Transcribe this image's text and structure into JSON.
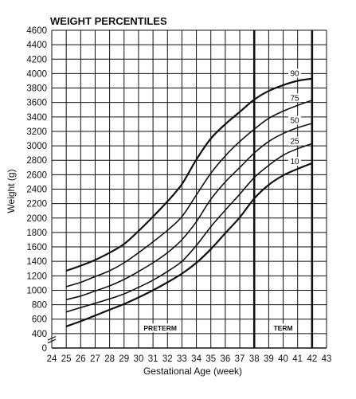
{
  "chart_data": {
    "type": "line",
    "title": "WEIGHT PERCENTILES",
    "xlabel": "Gestational Age (week)",
    "ylabel": "Weight (g)",
    "xlim": [
      24,
      43
    ],
    "ylim": [
      0,
      4600
    ],
    "x_ticks": [
      "24",
      "25",
      "26",
      "27",
      "28",
      "29",
      "30",
      "31",
      "32",
      "33",
      "34",
      "35",
      "36",
      "37",
      "38",
      "39",
      "40",
      "41",
      "42",
      "43"
    ],
    "y_ticks": [
      "0",
      "400",
      "600",
      "800",
      "1000",
      "1200",
      "1400",
      "1600",
      "1800",
      "2000",
      "2200",
      "2400",
      "2600",
      "2800",
      "3000",
      "3200",
      "3400",
      "3600",
      "3800",
      "4000",
      "4200",
      "4400",
      "4600"
    ],
    "grid": true,
    "regions": [
      {
        "label": "PRETERM",
        "x_start": 25,
        "x_end": 38
      },
      {
        "label": "TERM",
        "x_start": 38,
        "x_end": 42
      }
    ],
    "x": [
      25,
      26,
      27,
      28,
      29,
      30,
      31,
      32,
      33,
      34,
      35,
      36,
      37,
      38,
      39,
      40,
      41,
      42
    ],
    "series": [
      {
        "name": "90",
        "values": [
          1270,
          1340,
          1420,
          1520,
          1640,
          1820,
          2020,
          2230,
          2470,
          2810,
          3100,
          3300,
          3470,
          3640,
          3760,
          3840,
          3900,
          3930
        ]
      },
      {
        "name": "75",
        "values": [
          1050,
          1110,
          1190,
          1270,
          1380,
          1520,
          1670,
          1830,
          2020,
          2320,
          2620,
          2860,
          3060,
          3230,
          3380,
          3480,
          3560,
          3630
        ]
      },
      {
        "name": "50",
        "values": [
          870,
          920,
          990,
          1060,
          1150,
          1260,
          1380,
          1520,
          1700,
          1950,
          2260,
          2500,
          2700,
          2900,
          3060,
          3170,
          3250,
          3310
        ]
      },
      {
        "name": "25",
        "values": [
          700,
          760,
          820,
          880,
          950,
          1040,
          1140,
          1260,
          1400,
          1620,
          1880,
          2110,
          2330,
          2560,
          2730,
          2870,
          2960,
          3030
        ]
      },
      {
        "name": "10",
        "values": [
          500,
          570,
          650,
          730,
          810,
          900,
          1000,
          1110,
          1230,
          1380,
          1570,
          1790,
          2010,
          2270,
          2460,
          2590,
          2680,
          2760
        ]
      }
    ]
  }
}
